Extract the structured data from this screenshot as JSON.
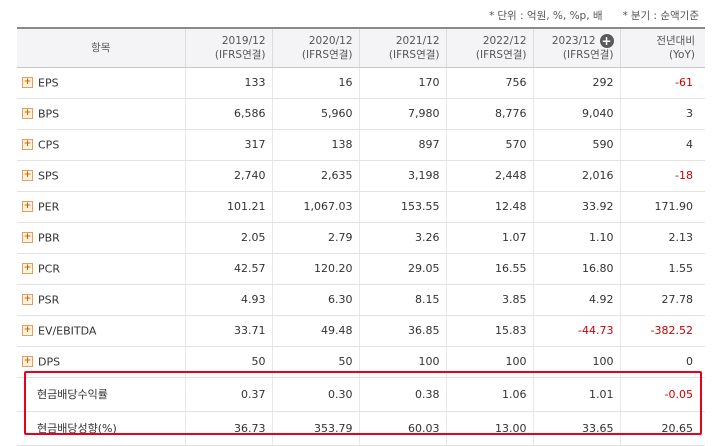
{
  "notes": {
    "unit": "단위 : 억원, %, %p, 배",
    "period": "분기 : 순액기준"
  },
  "header": {
    "item": "항목",
    "columns": [
      {
        "period": "2019/12",
        "basis": "(IFRS연결)"
      },
      {
        "period": "2020/12",
        "basis": "(IFRS연결)"
      },
      {
        "period": "2021/12",
        "basis": "(IFRS연결)"
      },
      {
        "period": "2022/12",
        "basis": "(IFRS연결)"
      },
      {
        "period": "2023/12",
        "basis": "(IFRS연결)"
      }
    ],
    "yoy": {
      "title": "전년대비",
      "sub": "(YoY)"
    }
  },
  "rows": [
    {
      "label": "EPS",
      "values": [
        "133",
        "16",
        "170",
        "756",
        "292"
      ],
      "yoy": "-61"
    },
    {
      "label": "BPS",
      "values": [
        "6,586",
        "5,960",
        "7,980",
        "8,776",
        "9,040"
      ],
      "yoy": "3"
    },
    {
      "label": "CPS",
      "values": [
        "317",
        "138",
        "897",
        "570",
        "590"
      ],
      "yoy": "4"
    },
    {
      "label": "SPS",
      "values": [
        "2,740",
        "2,635",
        "3,198",
        "2,448",
        "2,016"
      ],
      "yoy": "-18"
    },
    {
      "label": "PER",
      "values": [
        "101.21",
        "1,067.03",
        "153.55",
        "12.48",
        "33.92"
      ],
      "yoy": "171.90"
    },
    {
      "label": "PBR",
      "values": [
        "2.05",
        "2.79",
        "3.26",
        "1.07",
        "1.10"
      ],
      "yoy": "2.13"
    },
    {
      "label": "PCR",
      "values": [
        "42.57",
        "120.20",
        "29.05",
        "16.55",
        "16.80"
      ],
      "yoy": "1.55"
    },
    {
      "label": "PSR",
      "values": [
        "4.93",
        "6.30",
        "8.15",
        "3.85",
        "4.92"
      ],
      "yoy": "27.78"
    },
    {
      "label": "EV/EBITDA",
      "values": [
        "33.71",
        "49.48",
        "36.85",
        "15.83",
        "-44.73"
      ],
      "yoy": "-382.52"
    },
    {
      "label": "DPS",
      "values": [
        "50",
        "50",
        "100",
        "100",
        "100"
      ],
      "yoy": "0"
    },
    {
      "label": "현금배당수익률",
      "values": [
        "0.37",
        "0.30",
        "0.38",
        "1.06",
        "1.01"
      ],
      "yoy": "-0.05"
    },
    {
      "label": "현금배당성향(%)",
      "values": [
        "36.73",
        "353.79",
        "60.03",
        "13.00",
        "33.65"
      ],
      "yoy": "20.65"
    }
  ],
  "colors": {
    "negative": "#cc0000",
    "highlight": "#e8001c"
  }
}
